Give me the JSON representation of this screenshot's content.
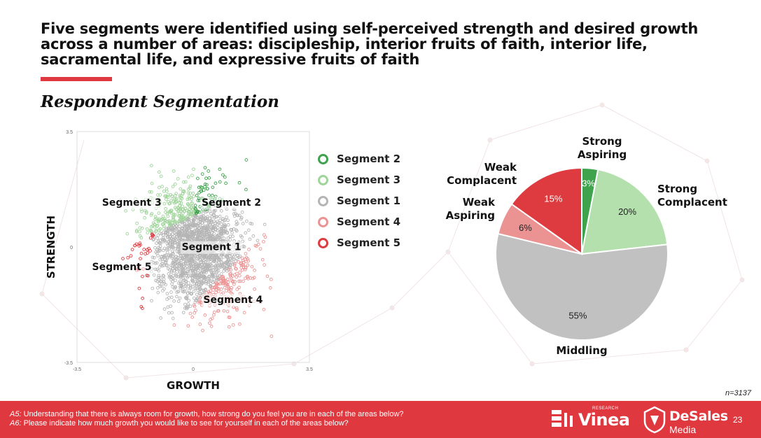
{
  "headline": "Five segments were identified using self-perceived strength and desired growth across a number of areas: discipleship, interior fruits of faith, interior life, sacramental life, and expressive fruits of faith",
  "subtitle": "Respondent Segmentation",
  "colors": {
    "accent_red": "#e0383f",
    "segment_2": "#3fa34d",
    "segment_3": "#9fd49a",
    "segment_1": "#b5b5b5",
    "segment_4": "#eb9393",
    "segment_5": "#dd3b40"
  },
  "chart_data": [
    {
      "type": "scatter",
      "xlabel": "GROWTH",
      "ylabel": "STRENGTH",
      "xlim": [
        -3.5,
        3.5
      ],
      "ylim": [
        -3.5,
        3.5
      ],
      "x_ticks": [
        "-3.5",
        "0",
        "3.5"
      ],
      "y_ticks": [
        "3.5",
        "0",
        "-3.5"
      ],
      "grid": false,
      "legend_position": "right",
      "series": [
        {
          "name": "Segment 2",
          "color": "#3fa34d",
          "label_at": [
            1.15,
            1.25
          ]
        },
        {
          "name": "Segment 3",
          "color": "#9fd49a",
          "label_at": [
            -1.85,
            1.25
          ]
        },
        {
          "name": "Segment 1",
          "color": "#b5b5b5",
          "label_at": [
            0.55,
            -0.1
          ]
        },
        {
          "name": "Segment 4",
          "color": "#eb9393",
          "label_at": [
            1.2,
            -1.7
          ]
        },
        {
          "name": "Segment 5",
          "color": "#dd3b40",
          "label_at": [
            -2.15,
            -0.7
          ]
        }
      ]
    },
    {
      "type": "pie",
      "slices": [
        {
          "name": "Strong Aspiring",
          "label_lines": [
            "Strong",
            "Aspiring"
          ],
          "value": 3,
          "value_label": "3%",
          "color": "#3fa34d"
        },
        {
          "name": "Strong Complacent",
          "label_lines": [
            "Strong",
            "Complacent"
          ],
          "value": 20,
          "value_label": "20%",
          "color": "#b4e0ad"
        },
        {
          "name": "Middling",
          "label_lines": [
            "Middling"
          ],
          "value": 55,
          "value_label": "55%",
          "color": "#c1c1c1"
        },
        {
          "name": "Weak Aspiring",
          "label_lines": [
            "Weak",
            "Aspiring"
          ],
          "value": 6,
          "value_label": "6%",
          "color": "#eb9393"
        },
        {
          "name": "Weak Complacent",
          "label_lines": [
            "Weak",
            "Complacent"
          ],
          "value": 15,
          "value_label": "15%",
          "color": "#dd3b40"
        }
      ]
    }
  ],
  "sample_size": "n=3137",
  "footer": {
    "q1_code": "A5:",
    "q1_text": " Understanding that there is always room for growth, how strong do you feel you are in each of the areas below?",
    "q2_code": "A6:",
    "q2_text": " Please indicate how much growth you would like to see for yourself in each of the areas below?",
    "logo_vinea": "Vinea",
    "logo_vinea_small": "RESEARCH",
    "logo_desales": "DeSales",
    "logo_desales_media": "Media",
    "page_number": "23"
  }
}
